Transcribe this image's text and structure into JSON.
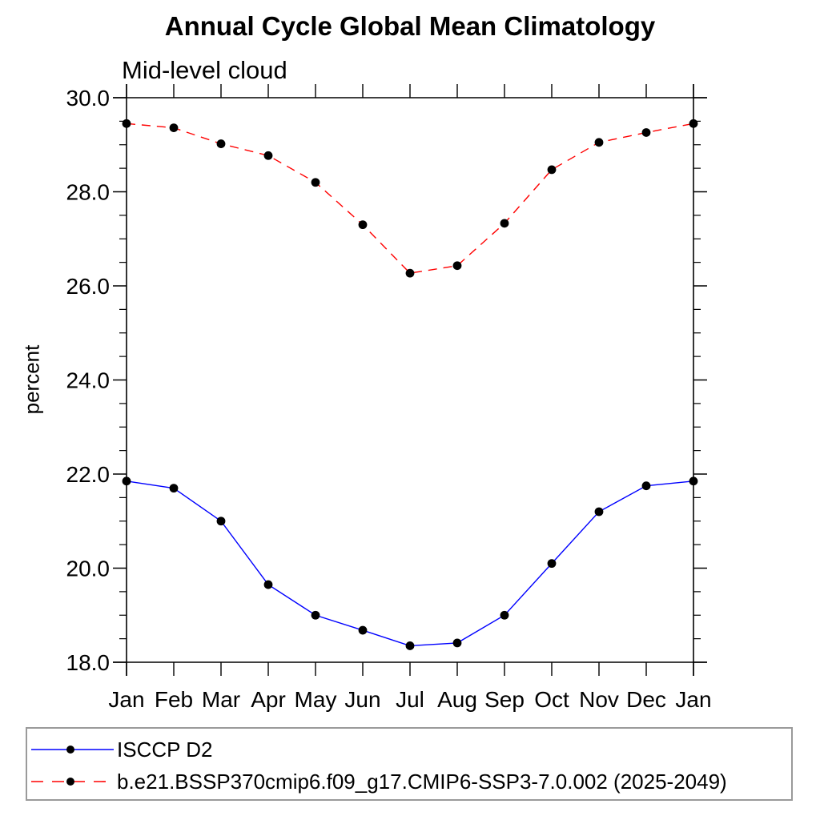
{
  "page": {
    "background_color": "#ffffff",
    "text_color": "#000000"
  },
  "chart_data": {
    "type": "line",
    "title": "Annual Cycle Global Mean Climatology",
    "subtitle": "Mid-level cloud",
    "ylabel": "percent",
    "xlabel": "",
    "categories": [
      "Jan",
      "Feb",
      "Mar",
      "Apr",
      "May",
      "Jun",
      "Jul",
      "Aug",
      "Sep",
      "Oct",
      "Nov",
      "Dec",
      "Jan"
    ],
    "ylim": [
      18.0,
      30.0
    ],
    "ytick_major": [
      18.0,
      20.0,
      22.0,
      24.0,
      26.0,
      28.0,
      30.0
    ],
    "yticklabels": [
      "18.0",
      "20.0",
      "22.0",
      "24.0",
      "26.0",
      "28.0",
      "30.0"
    ],
    "ytick_minor_step": 0.5,
    "grid": false,
    "legend_position": "bottom-left-box",
    "axis_color": "#000000",
    "legend_border_color": "#9a9a9a",
    "marker_color": "#000000",
    "series": [
      {
        "name": "ISCCP D2",
        "color": "#0000ff",
        "line_style": "solid",
        "marker": "circle",
        "values": [
          21.85,
          21.7,
          21.0,
          19.65,
          19.0,
          18.68,
          18.35,
          18.41,
          19.0,
          20.1,
          21.2,
          21.75,
          21.85
        ]
      },
      {
        "name": "b.e21.BSSP370cmip6.f09_g17.CMIP6-SSP3-7.0.002 (2025-2049)",
        "color": "#ff0000",
        "line_style": "dashed",
        "marker": "circle",
        "values": [
          29.45,
          29.36,
          29.02,
          28.77,
          28.2,
          27.3,
          26.27,
          26.43,
          27.33,
          28.47,
          29.05,
          29.26,
          29.45
        ]
      }
    ]
  }
}
